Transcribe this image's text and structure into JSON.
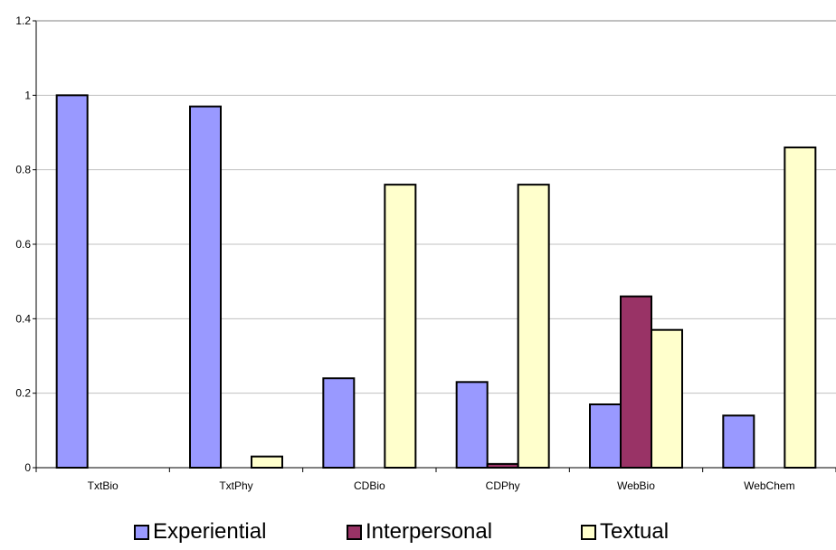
{
  "chart_data": {
    "type": "bar",
    "categories": [
      "TxtBio",
      "TxtPhy",
      "CDBio",
      "CDPhy",
      "WebBio",
      "WebChem"
    ],
    "series": [
      {
        "name": "Experiential",
        "values": [
          1.0,
          0.97,
          0.24,
          0.23,
          0.17,
          0.14
        ],
        "color": "#9999FF"
      },
      {
        "name": "Interpersonal",
        "values": [
          0,
          0,
          0,
          0.01,
          0.46,
          0
        ],
        "color": "#993366"
      },
      {
        "name": "Textual",
        "values": [
          0,
          0.03,
          0.76,
          0.76,
          0.37,
          0.86
        ],
        "color": "#FFFFCC"
      }
    ],
    "yticks": [
      "0",
      "0.2",
      "0.4",
      "0.6",
      "0.8",
      "1",
      "1.2"
    ],
    "ylim": [
      0,
      1.2
    ],
    "grid": true,
    "legend_position": "bottom"
  }
}
